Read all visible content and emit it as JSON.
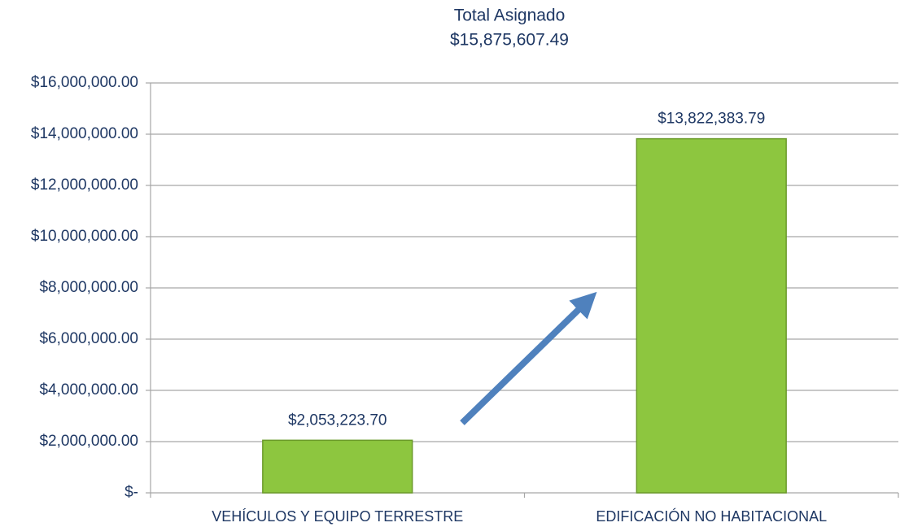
{
  "chart_data": {
    "type": "bar",
    "title": "Total Asignado",
    "subtitle": "$15,875,607.49",
    "categories": [
      "VEHÍCULOS Y EQUIPO TERRESTRE",
      "EDIFICACIÓN NO HABITACIONAL"
    ],
    "values": [
      2053223.7,
      13822383.79
    ],
    "value_labels": [
      "$2,053,223.70",
      "$13,822,383.79"
    ],
    "color": "#8dc63f",
    "ylim": [
      0,
      16000000
    ],
    "yticks": [
      {
        "value": 0,
        "label": "$-"
      },
      {
        "value": 2000000,
        "label": "$2,000,000.00"
      },
      {
        "value": 4000000,
        "label": "$4,000,000.00"
      },
      {
        "value": 6000000,
        "label": "$6,000,000.00"
      },
      {
        "value": 8000000,
        "label": "$8,000,000.00"
      },
      {
        "value": 10000000,
        "label": "$10,000,000.00"
      },
      {
        "value": 12000000,
        "label": "$12,000,000.00"
      },
      {
        "value": 14000000,
        "label": "$14,000,000.00"
      },
      {
        "value": 16000000,
        "label": "$16,000,000.00"
      }
    ],
    "grid": true
  }
}
